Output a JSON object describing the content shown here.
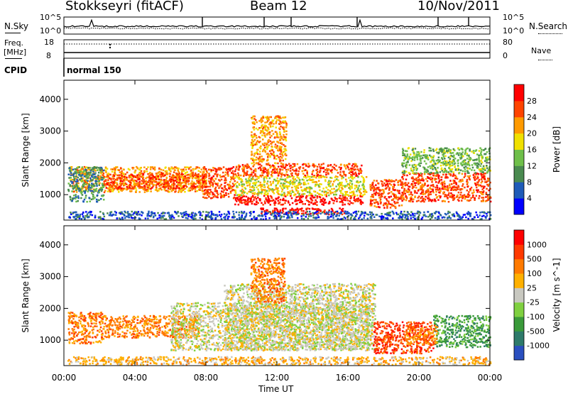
{
  "header": {
    "station": "Stokkseyri (fitACF)",
    "beam": "Beam 12",
    "date": "10/Nov/2011"
  },
  "noise_panel": {
    "left_label": "N.Sky",
    "right_label": "N.Search",
    "left_ticks": [
      "10^5",
      "10^0"
    ],
    "right_ticks": [
      "10^5",
      "10^0"
    ]
  },
  "freq_panel": {
    "left_label_line1": "Freq.",
    "left_label_line2": "[MHz]",
    "left_ticks": [
      "18",
      "8"
    ],
    "right_label": "Nave",
    "right_ticks": [
      "80",
      "0"
    ]
  },
  "cpid": {
    "label": "CPID",
    "value": "normal 150"
  },
  "chart_data": [
    {
      "type": "heatmap",
      "title": "",
      "xlabel": "Time UT",
      "ylabel": "Slant Range [km]",
      "xticks": [
        "00:00",
        "04:00",
        "08:00",
        "12:00",
        "16:00",
        "20:00",
        "00:00"
      ],
      "x_hours": [
        0,
        4,
        8,
        12,
        16,
        20,
        24
      ],
      "yticks": [
        1000,
        2000,
        3000,
        4000
      ],
      "ylim": [
        200,
        4600
      ],
      "colorbar": {
        "label": "Power [dB]",
        "ticks": [
          "28",
          "24",
          "20",
          "16",
          "12",
          "8",
          "4"
        ],
        "colors": [
          "#0000ff",
          "#1f5bb8",
          "#4a8a50",
          "#6fbf4a",
          "#f0e000",
          "#ff9a00",
          "#ff4400",
          "#ff0000"
        ]
      },
      "regions": [
        {
          "t": [
            0.3,
            8.0
          ],
          "r": [
            1100,
            1900
          ],
          "c": 5
        },
        {
          "t": [
            2.2,
            8.0
          ],
          "r": [
            1200,
            1700
          ],
          "c": 6
        },
        {
          "t": [
            0.2,
            2.2
          ],
          "r": [
            800,
            1900
          ],
          "c": 2
        },
        {
          "t": [
            7.8,
            9.6
          ],
          "r": [
            900,
            1900
          ],
          "c": 6
        },
        {
          "t": [
            9.6,
            16.8
          ],
          "r": [
            700,
            1000
          ],
          "c": 7
        },
        {
          "t": [
            9.6,
            16.8
          ],
          "r": [
            1600,
            2000
          ],
          "c": 6
        },
        {
          "t": [
            11.0,
            15.8
          ],
          "r": [
            400,
            600
          ],
          "c": 7
        },
        {
          "t": [
            9.6,
            17.0
          ],
          "r": [
            1000,
            1600
          ],
          "c": 4
        },
        {
          "t": [
            17.2,
            19.0
          ],
          "r": [
            600,
            1500
          ],
          "c": 6
        },
        {
          "t": [
            19.0,
            24.0
          ],
          "r": [
            800,
            1700
          ],
          "c": 6
        },
        {
          "t": [
            19.0,
            24.0
          ],
          "r": [
            1700,
            2500
          ],
          "c": 3
        },
        {
          "t": [
            10.5,
            12.5
          ],
          "r": [
            2000,
            3500
          ],
          "c": 5
        },
        {
          "t": [
            0.2,
            24.0
          ],
          "r": [
            250,
            500
          ],
          "c": 1
        }
      ]
    },
    {
      "type": "heatmap",
      "title": "",
      "xlabel": "Time UT",
      "ylabel": "Slant Range [km]",
      "xticks": [
        "00:00",
        "04:00",
        "08:00",
        "12:00",
        "16:00",
        "20:00",
        "00:00"
      ],
      "x_hours": [
        0,
        4,
        8,
        12,
        16,
        20,
        24
      ],
      "yticks": [
        1000,
        2000,
        3000,
        4000
      ],
      "ylim": [
        200,
        4600
      ],
      "colorbar": {
        "label": "Velocity [m s^-1]",
        "ticks": [
          "1000",
          "500",
          "100",
          "25",
          "-25",
          "-100",
          "-500",
          "-1000"
        ],
        "colors": [
          "#2a4fbf",
          "#2e7a6a",
          "#3a9a3a",
          "#7fd040",
          "#c8c8c0",
          "#ffb000",
          "#ff7a00",
          "#ff3a00",
          "#ff0000"
        ]
      },
      "regions": [
        {
          "t": [
            0.2,
            2.2
          ],
          "r": [
            900,
            1900
          ],
          "c": 6
        },
        {
          "t": [
            2.2,
            7.6
          ],
          "r": [
            1100,
            1800
          ],
          "c": 6
        },
        {
          "t": [
            6.0,
            17.2
          ],
          "r": [
            700,
            2200
          ],
          "c": 4
        },
        {
          "t": [
            9.0,
            17.5
          ],
          "r": [
            700,
            2800
          ],
          "c": 4
        },
        {
          "t": [
            10.5,
            12.4
          ],
          "r": [
            2200,
            3600
          ],
          "c": 6
        },
        {
          "t": [
            17.4,
            20.8
          ],
          "r": [
            600,
            1600
          ],
          "c": 7
        },
        {
          "t": [
            20.8,
            24.0
          ],
          "r": [
            800,
            1800
          ],
          "c": 2
        },
        {
          "t": [
            19.2,
            21.0
          ],
          "r": [
            900,
            1500
          ],
          "c": 6
        },
        {
          "t": [
            0.2,
            24.0
          ],
          "r": [
            250,
            500
          ],
          "c": 5
        }
      ]
    }
  ]
}
